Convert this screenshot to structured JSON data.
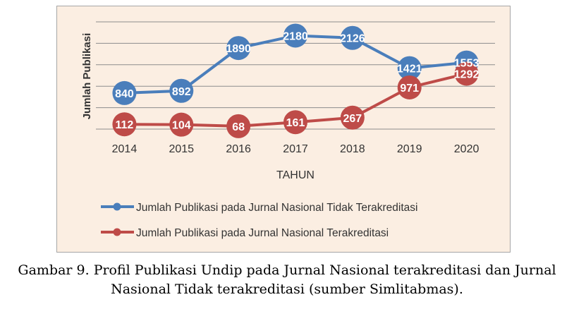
{
  "chart_data": {
    "type": "line",
    "categories": [
      "2014",
      "2015",
      "2016",
      "2017",
      "2018",
      "2019",
      "2020"
    ],
    "xlabel": "TAHUN",
    "ylabel": "Jumlah Publikasi",
    "ylim": [
      0,
      2500
    ],
    "grid": true,
    "legend_position": "bottom",
    "series": [
      {
        "name": "Jumlah Publikasi pada Jurnal Nasional Tidak Terakreditasi",
        "values": [
          840,
          892,
          1890,
          2180,
          2126,
          1421,
          1553
        ],
        "color": "#4a7ebb"
      },
      {
        "name": "Jumlah Publikasi pada Jurnal Nasional Terakreditasi",
        "values": [
          112,
          104,
          68,
          161,
          267,
          971,
          1292
        ],
        "color": "#be4b48"
      }
    ]
  },
  "caption": {
    "line1": "Gambar 9. Profil Publikasi Undip pada Jurnal Nasional terakreditasi dan Jurnal",
    "line2": "Nasional Tidak terakreditasi (sumber Simlitabmas)."
  },
  "colors": {
    "plot_background": "#fbeee2",
    "grid": "#8c8c8c"
  }
}
